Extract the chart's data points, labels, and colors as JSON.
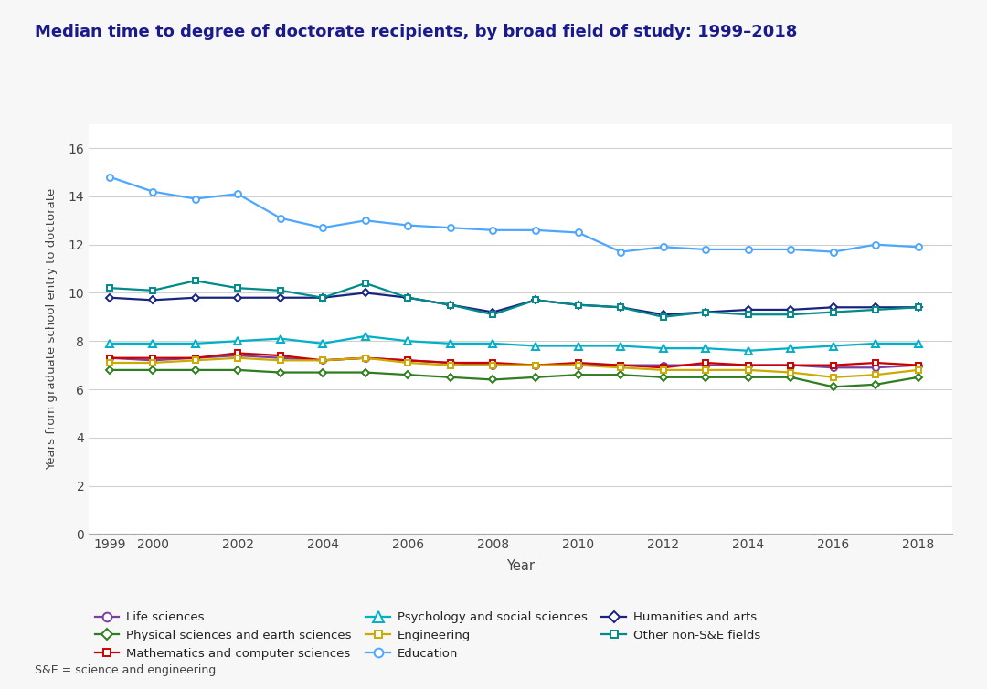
{
  "title": "Median time to degree of doctorate recipients, by broad field of study: 1999–2018",
  "xlabel": "Year",
  "ylabel": "Years from graduate school entry to doctorate",
  "footnote": "S&E = science and engineering.",
  "background_color": "#f7f7f7",
  "plot_bg_color": "#ffffff",
  "title_color": "#1a1a8c",
  "years": [
    1999,
    2000,
    2001,
    2002,
    2003,
    2004,
    2005,
    2006,
    2007,
    2008,
    2009,
    2010,
    2011,
    2012,
    2013,
    2014,
    2015,
    2016,
    2017,
    2018
  ],
  "series": {
    "Life sciences": {
      "color": "#7b3f9e",
      "marker": "o",
      "marker_size": 5,
      "values": [
        7.3,
        7.2,
        7.3,
        7.4,
        7.3,
        7.2,
        7.3,
        7.2,
        7.1,
        7.0,
        7.0,
        7.0,
        7.0,
        7.0,
        7.0,
        7.0,
        7.0,
        6.9,
        6.9,
        7.0
      ]
    },
    "Physical sciences and earth sciences": {
      "color": "#2e7d1e",
      "marker": "D",
      "marker_size": 4,
      "values": [
        6.8,
        6.8,
        6.8,
        6.8,
        6.7,
        6.7,
        6.7,
        6.6,
        6.5,
        6.4,
        6.5,
        6.6,
        6.6,
        6.5,
        6.5,
        6.5,
        6.5,
        6.1,
        6.2,
        6.5
      ]
    },
    "Mathematics and computer sciences": {
      "color": "#cc0000",
      "marker": "s",
      "marker_size": 4,
      "values": [
        7.3,
        7.3,
        7.3,
        7.5,
        7.4,
        7.2,
        7.3,
        7.2,
        7.1,
        7.1,
        7.0,
        7.1,
        7.0,
        6.9,
        7.1,
        7.0,
        7.0,
        7.0,
        7.1,
        7.0
      ]
    },
    "Psychology and social sciences": {
      "color": "#00b0c8",
      "marker": "^",
      "marker_size": 6,
      "values": [
        7.9,
        7.9,
        7.9,
        8.0,
        8.1,
        7.9,
        8.2,
        8.0,
        7.9,
        7.9,
        7.8,
        7.8,
        7.8,
        7.7,
        7.7,
        7.6,
        7.7,
        7.8,
        7.9,
        7.9
      ]
    },
    "Engineering": {
      "color": "#ccaa00",
      "marker": "s",
      "marker_size": 4,
      "values": [
        7.1,
        7.1,
        7.2,
        7.3,
        7.2,
        7.2,
        7.3,
        7.1,
        7.0,
        7.0,
        7.0,
        7.0,
        6.9,
        6.8,
        6.8,
        6.8,
        6.7,
        6.5,
        6.6,
        6.8
      ]
    },
    "Education": {
      "color": "#4da6ff",
      "marker": "o",
      "marker_size": 5,
      "values": [
        14.8,
        14.2,
        13.9,
        14.1,
        13.1,
        12.7,
        13.0,
        12.8,
        12.7,
        12.6,
        12.6,
        12.5,
        11.7,
        11.9,
        11.8,
        11.8,
        11.8,
        11.7,
        12.0,
        11.9
      ]
    },
    "Humanities and arts": {
      "color": "#1a237e",
      "marker": "D",
      "marker_size": 4,
      "values": [
        9.8,
        9.7,
        9.8,
        9.8,
        9.8,
        9.8,
        10.0,
        9.8,
        9.5,
        9.2,
        9.7,
        9.5,
        9.4,
        9.1,
        9.2,
        9.3,
        9.3,
        9.4,
        9.4,
        9.4
      ]
    },
    "Other non-S&E fields": {
      "color": "#008b8b",
      "marker": "s",
      "marker_size": 4,
      "values": [
        10.2,
        10.1,
        10.5,
        10.2,
        10.1,
        9.8,
        10.4,
        9.8,
        9.5,
        9.1,
        9.7,
        9.5,
        9.4,
        9.0,
        9.2,
        9.1,
        9.1,
        9.2,
        9.3,
        9.4
      ]
    }
  },
  "ylim": [
    0,
    17
  ],
  "yticks": [
    0,
    2,
    4,
    6,
    8,
    10,
    12,
    14,
    16
  ],
  "legend_order": [
    "Life sciences",
    "Physical sciences and earth sciences",
    "Mathematics and computer sciences",
    "Psychology and social sciences",
    "Engineering",
    "Education",
    "Humanities and arts",
    "Other non-S&E fields"
  ],
  "xtick_show": [
    1999,
    2000,
    2002,
    2004,
    2006,
    2008,
    2010,
    2012,
    2014,
    2016,
    2018
  ]
}
